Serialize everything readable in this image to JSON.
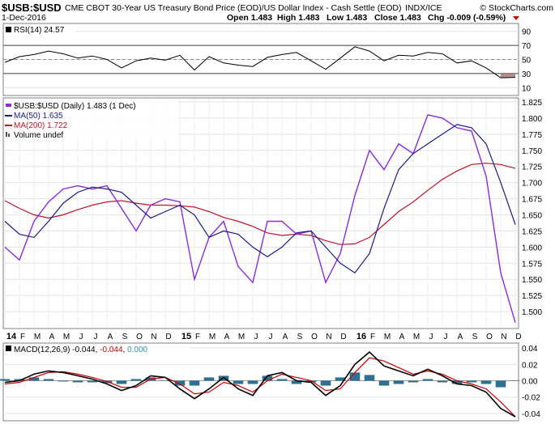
{
  "header": {
    "symbol": "$USB:$USD",
    "description": "CME CBOT 30-Year US Treasury Bond Price (EOD)/US Dollar Index - Cash Settle (EOD)",
    "exchange": "INDX/ICE",
    "copyright": "© StockCharts.com",
    "date": "1-Dec-2016",
    "open": "Open 1.483",
    "high": "High 1.483",
    "low": "Low 1.483",
    "close": "Close 1.483",
    "chg": "Chg -0.009 (-0.59%)"
  },
  "colors": {
    "price": "#8a2be2",
    "ma50": "#1a1a8c",
    "ma200": "#c0142a",
    "macd": "#000000",
    "signal": "#cc0000",
    "histogram": "#2f6f8f",
    "rsi_fill": "#9b6a6a",
    "grid": "#d9d9d9",
    "frame": "#808080"
  },
  "chart_data": [
    {
      "type": "line",
      "panel": "rsi",
      "legend": "RSI(14) 24.57",
      "ylim": [
        0,
        100
      ],
      "y_ticks": [
        10,
        30,
        50,
        70,
        90
      ],
      "reference_lines": [
        30,
        50,
        70
      ],
      "last_value": 24.57,
      "x": [
        "2014-01",
        "2014-02",
        "2014-03",
        "2014-04",
        "2014-05",
        "2014-06",
        "2014-07",
        "2014-08",
        "2014-09",
        "2014-10",
        "2014-11",
        "2014-12",
        "2015-01",
        "2015-02",
        "2015-03",
        "2015-04",
        "2015-05",
        "2015-06",
        "2015-07",
        "2015-08",
        "2015-09",
        "2015-10",
        "2015-11",
        "2015-12",
        "2016-01",
        "2016-02",
        "2016-03",
        "2016-04",
        "2016-05",
        "2016-06",
        "2016-07",
        "2016-08",
        "2016-09",
        "2016-10",
        "2016-11",
        "2016-12"
      ],
      "values": [
        46,
        54,
        57,
        62,
        58,
        52,
        55,
        50,
        38,
        48,
        52,
        49,
        56,
        35,
        54,
        45,
        42,
        40,
        53,
        57,
        60,
        48,
        36,
        52,
        68,
        62,
        48,
        56,
        55,
        60,
        58,
        45,
        48,
        38,
        24,
        24.57
      ]
    },
    {
      "type": "line",
      "panel": "price",
      "legend": [
        {
          "name": "$USB:$USD (Daily) 1.483 (1 Dec)"
        },
        {
          "name": "MA(50) 1.635"
        },
        {
          "name": "MA(200) 1.722"
        },
        {
          "name": "Volume undef"
        }
      ],
      "ylim": [
        1.475,
        1.83
      ],
      "y_ticks": [
        "1.500",
        "1.525",
        "1.550",
        "1.575",
        "1.600",
        "1.625",
        "1.650",
        "1.675",
        "1.700",
        "1.725",
        "1.750",
        "1.775",
        "1.800",
        "1.825"
      ],
      "x": [
        "2014-01",
        "2014-02",
        "2014-03",
        "2014-04",
        "2014-05",
        "2014-06",
        "2014-07",
        "2014-08",
        "2014-09",
        "2014-10",
        "2014-11",
        "2014-12",
        "2015-01",
        "2015-02",
        "2015-03",
        "2015-04",
        "2015-05",
        "2015-06",
        "2015-07",
        "2015-08",
        "2015-09",
        "2015-10",
        "2015-11",
        "2015-12",
        "2016-01",
        "2016-02",
        "2016-03",
        "2016-04",
        "2016-05",
        "2016-06",
        "2016-07",
        "2016-08",
        "2016-09",
        "2016-10",
        "2016-11",
        "2016-12"
      ],
      "series": [
        {
          "key": "price",
          "values": [
            1.6,
            1.58,
            1.64,
            1.67,
            1.69,
            1.695,
            1.69,
            1.695,
            1.66,
            1.625,
            1.665,
            1.675,
            1.67,
            1.55,
            1.615,
            1.64,
            1.57,
            1.545,
            1.64,
            1.64,
            1.62,
            1.625,
            1.545,
            1.59,
            1.68,
            1.75,
            1.72,
            1.76,
            1.745,
            1.805,
            1.8,
            1.785,
            1.78,
            1.71,
            1.56,
            1.483
          ]
        },
        {
          "key": "ma50",
          "values": [
            1.64,
            1.62,
            1.615,
            1.64,
            1.668,
            1.685,
            1.693,
            1.69,
            1.685,
            1.665,
            1.645,
            1.655,
            1.665,
            1.65,
            1.615,
            1.625,
            1.62,
            1.6,
            1.585,
            1.6,
            1.622,
            1.625,
            1.6,
            1.575,
            1.56,
            1.59,
            1.66,
            1.72,
            1.745,
            1.76,
            1.775,
            1.79,
            1.785,
            1.76,
            1.7,
            1.635
          ]
        },
        {
          "key": "ma200",
          "values": [
            1.672,
            1.66,
            1.65,
            1.645,
            1.65,
            1.658,
            1.665,
            1.67,
            1.672,
            1.668,
            1.665,
            1.665,
            1.664,
            1.662,
            1.655,
            1.646,
            1.64,
            1.632,
            1.622,
            1.618,
            1.62,
            1.618,
            1.61,
            1.604,
            1.605,
            1.615,
            1.635,
            1.655,
            1.67,
            1.688,
            1.705,
            1.718,
            1.728,
            1.73,
            1.728,
            1.722
          ]
        }
      ],
      "x_tick_labels": [
        "14",
        "F",
        "M",
        "A",
        "M",
        "J",
        "J",
        "A",
        "S",
        "O",
        "N",
        "D",
        "15",
        "F",
        "M",
        "A",
        "M",
        "J",
        "J",
        "A",
        "S",
        "O",
        "N",
        "D",
        "16",
        "F",
        "M",
        "A",
        "M",
        "J",
        "J",
        "A",
        "S",
        "O",
        "N",
        "D"
      ]
    },
    {
      "type": "line",
      "panel": "macd",
      "legend": {
        "prefix": "MACD(12,26,9) ",
        "macd": "-0.044",
        "signal": "-0.044",
        "hist": "0.000"
      },
      "ylim": [
        -0.048,
        0.045
      ],
      "y_ticks": [
        "0.04",
        "0.02",
        "0.00",
        "-0.02",
        "-0.04"
      ],
      "x": [
        "2014-01",
        "2014-02",
        "2014-03",
        "2014-04",
        "2014-05",
        "2014-06",
        "2014-07",
        "2014-08",
        "2014-09",
        "2014-10",
        "2014-11",
        "2014-12",
        "2015-01",
        "2015-02",
        "2015-03",
        "2015-04",
        "2015-05",
        "2015-06",
        "2015-07",
        "2015-08",
        "2015-09",
        "2015-10",
        "2015-11",
        "2015-12",
        "2016-01",
        "2016-02",
        "2016-03",
        "2016-04",
        "2016-05",
        "2016-06",
        "2016-07",
        "2016-08",
        "2016-09",
        "2016-10",
        "2016-11",
        "2016-12"
      ],
      "series": [
        {
          "key": "macd",
          "values": [
            -0.002,
            0.0,
            0.008,
            0.012,
            0.01,
            0.006,
            0.002,
            -0.004,
            -0.012,
            -0.006,
            0.006,
            0.004,
            -0.01,
            -0.022,
            -0.01,
            0.004,
            -0.01,
            -0.018,
            0.006,
            0.01,
            0.0,
            -0.002,
            -0.018,
            -0.006,
            0.02,
            0.035,
            0.018,
            0.012,
            0.006,
            0.014,
            0.006,
            -0.004,
            -0.006,
            -0.014,
            -0.034,
            -0.044
          ]
        },
        {
          "key": "signal",
          "values": [
            -0.004,
            -0.002,
            0.004,
            0.01,
            0.011,
            0.008,
            0.004,
            -0.001,
            -0.008,
            -0.008,
            0.002,
            0.004,
            -0.004,
            -0.016,
            -0.014,
            -0.002,
            -0.006,
            -0.014,
            0.0,
            0.008,
            0.004,
            0.0,
            -0.012,
            -0.01,
            0.01,
            0.028,
            0.024,
            0.016,
            0.008,
            0.012,
            0.008,
            0.0,
            -0.004,
            -0.01,
            -0.026,
            -0.044
          ]
        },
        {
          "key": "hist",
          "values": [
            0.002,
            0.002,
            0.004,
            0.002,
            -0.001,
            -0.002,
            -0.002,
            -0.003,
            -0.004,
            0.002,
            0.004,
            0.0,
            -0.006,
            -0.006,
            0.004,
            0.006,
            -0.004,
            -0.004,
            0.006,
            0.002,
            -0.004,
            -0.002,
            -0.006,
            0.004,
            0.01,
            0.007,
            -0.006,
            -0.004,
            -0.002,
            0.002,
            -0.002,
            -0.004,
            -0.002,
            -0.004,
            -0.008,
            0.0
          ]
        }
      ]
    }
  ]
}
